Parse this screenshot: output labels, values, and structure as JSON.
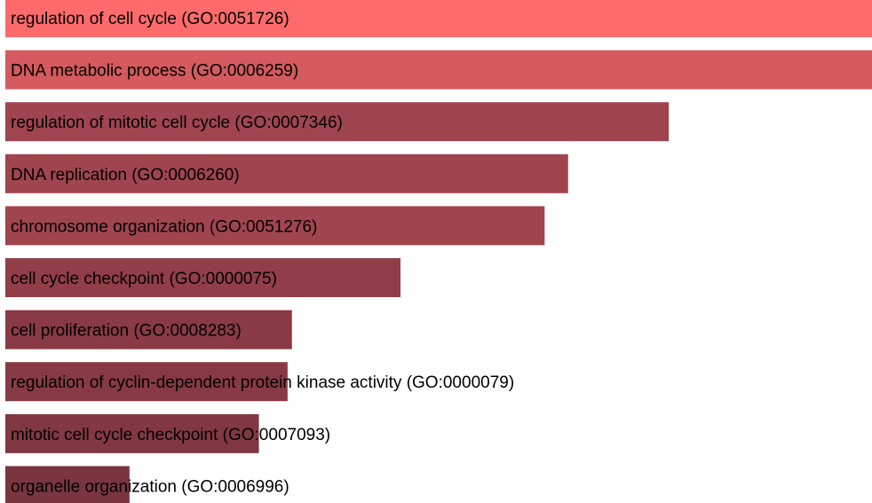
{
  "chart_data": {
    "type": "bar",
    "orientation": "horizontal",
    "categories": [
      "regulation of cell cycle (GO:0051726)",
      "DNA metabolic process (GO:0006259)",
      "regulation of mitotic cell cycle (GO:0007346)",
      "DNA replication (GO:0006260)",
      "chromosome organization (GO:0051276)",
      "cell cycle checkpoint (GO:0000075)",
      "cell proliferation (GO:0008283)",
      "regulation of cyclin-dependent protein kinase activity (GO:0000079)",
      "mitotic cell cycle checkpoint (GO:0007093)",
      "organelle organization (GO:0006996)"
    ],
    "values": [
      1.0,
      0.998,
      0.764,
      0.648,
      0.621,
      0.455,
      0.33,
      0.325,
      0.292,
      0.143
    ],
    "colors": [
      "#ff6b6b",
      "#d45a5e",
      "#a04550",
      "#a0454e",
      "#a0454e",
      "#913e48",
      "#8a3a44",
      "#883a44",
      "#823843",
      "#7a3640"
    ],
    "title": "",
    "xlabel": "",
    "ylabel": "",
    "xlim": [
      0,
      1
    ],
    "grid": false,
    "legend": "none"
  }
}
